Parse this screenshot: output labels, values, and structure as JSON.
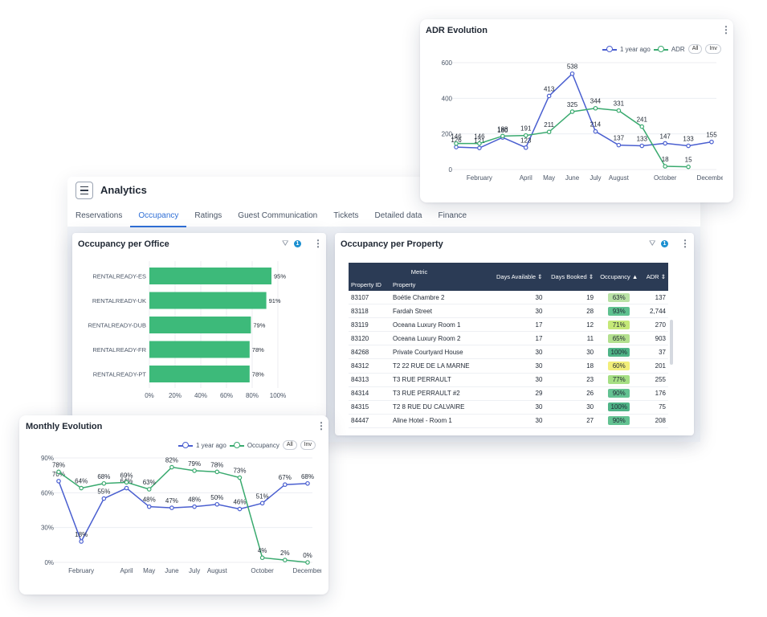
{
  "app": {
    "title": "Analytics"
  },
  "tabs": [
    {
      "label": "Reservations",
      "active": false
    },
    {
      "label": "Occupancy",
      "active": true
    },
    {
      "label": "Ratings",
      "active": false
    },
    {
      "label": "Guest Communication",
      "active": false
    },
    {
      "label": "Tickets",
      "active": false
    },
    {
      "label": "Detailed data",
      "active": false
    },
    {
      "label": "Finance",
      "active": false
    }
  ],
  "office_card": {
    "title": "Occupancy per Office",
    "filter_count": "1",
    "menu_icon": "kebab-icon",
    "chart_data": {
      "type": "bar",
      "orientation": "horizontal",
      "categories": [
        "RENTALREADY-ES",
        "RENTALREADY-UK",
        "RENTALREADY-DUB",
        "RENTALREADY-FR",
        "RENTALREADY-PT"
      ],
      "values": [
        95,
        91,
        79,
        78,
        78
      ],
      "value_labels": [
        "95%",
        "91%",
        "79%",
        "78%",
        "78%"
      ],
      "xticks": [
        "0%",
        "20%",
        "40%",
        "60%",
        "80%",
        "100%"
      ],
      "xlim": [
        0,
        100
      ],
      "color": "#3dba7a"
    }
  },
  "property_card": {
    "title": "Occupancy per Property",
    "filter_count": "1",
    "header": {
      "metric": "Metric",
      "property_id": "Property ID",
      "property": "Property",
      "days_available": "Days Available",
      "days_booked": "Days Booked",
      "occupancy": "Occupancy",
      "adr": "ADR"
    },
    "sort_icons": {
      "days_available": "⇕",
      "days_booked": "⇕",
      "occupancy": "▲",
      "adr": "⇕"
    },
    "rows": [
      {
        "id": "83107",
        "name": "Boétie Chambre 2",
        "avail": "30",
        "booked": "19",
        "occ": "63%",
        "occ_color": "#b9e2a6",
        "adr": "137"
      },
      {
        "id": "83118",
        "name": "Fardah Street",
        "avail": "30",
        "booked": "28",
        "occ": "93%",
        "occ_color": "#5fc190",
        "adr": "2,744"
      },
      {
        "id": "83119",
        "name": "Oceana Luxury Room 1",
        "avail": "17",
        "booked": "12",
        "occ": "71%",
        "occ_color": "#c5e878",
        "adr": "270"
      },
      {
        "id": "83120",
        "name": "Oceana Luxury Room 2",
        "avail": "17",
        "booked": "11",
        "occ": "65%",
        "occ_color": "#b4e08f",
        "adr": "903"
      },
      {
        "id": "84268",
        "name": "Private Courtyard House",
        "avail": "30",
        "booked": "30",
        "occ": "100%",
        "occ_color": "#4fb487",
        "adr": "37"
      },
      {
        "id": "84312",
        "name": "T2 22 RUE DE LA MARNE",
        "avail": "30",
        "booked": "18",
        "occ": "60%",
        "occ_color": "#f2ee7a",
        "adr": "201"
      },
      {
        "id": "84313",
        "name": "T3 RUE PERRAULT",
        "avail": "30",
        "booked": "23",
        "occ": "77%",
        "occ_color": "#a6df84",
        "adr": "255"
      },
      {
        "id": "84314",
        "name": "T3 RUE PERRAULT #2",
        "avail": "29",
        "booked": "26",
        "occ": "90%",
        "occ_color": "#63c292",
        "adr": "176"
      },
      {
        "id": "84315",
        "name": "T2 8 RUE DU CALVAIRE",
        "avail": "30",
        "booked": "30",
        "occ": "100%",
        "occ_color": "#4fb487",
        "adr": "75"
      },
      {
        "id": "84447",
        "name": "Aline Hotel - Room 1",
        "avail": "30",
        "booked": "27",
        "occ": "90%",
        "occ_color": "#63c292",
        "adr": "208"
      }
    ]
  },
  "adr_card": {
    "title": "ADR Evolution",
    "legend": {
      "prev": "1 year ago",
      "cur": "ADR",
      "all": "All",
      "inv": "Inv"
    },
    "chart_data": {
      "type": "line",
      "xticks": [
        "February",
        "April",
        "May",
        "June",
        "July",
        "August",
        "October",
        "December"
      ],
      "x_months": [
        1,
        2,
        3,
        4,
        5,
        6,
        7,
        8,
        9,
        10,
        11,
        12
      ],
      "yticks": [
        "0",
        "200",
        "400",
        "600"
      ],
      "ylim": [
        0,
        600
      ],
      "series": [
        {
          "name": "1 year ago",
          "color": "#4a5fd0",
          "values": [
            126,
            121,
            180,
            123,
            413,
            538,
            214,
            137,
            133,
            147,
            133,
            155
          ],
          "labels": [
            "126",
            "121",
            "180",
            "123",
            "413",
            "538",
            "214",
            "137",
            "133",
            "147",
            "133",
            "155"
          ]
        },
        {
          "name": "ADR",
          "color": "#3aaa6f",
          "values": [
            146,
            146,
            188,
            191,
            211,
            325,
            344,
            331,
            241,
            18,
            15,
            null
          ],
          "labels": [
            "146",
            "146",
            "188",
            "191",
            "211",
            "325",
            "344",
            "331",
            "241",
            "18",
            "15",
            ""
          ]
        }
      ]
    }
  },
  "monthly_card": {
    "title": "Monthly Evolution",
    "legend": {
      "prev": "1 year ago",
      "cur": "Occupancy",
      "all": "All",
      "inv": "Inv"
    },
    "chart_data": {
      "type": "line",
      "xticks": [
        "February",
        "April",
        "May",
        "June",
        "July",
        "August",
        "October",
        "December"
      ],
      "x_months": [
        1,
        2,
        3,
        4,
        5,
        6,
        7,
        8,
        9,
        10,
        11,
        12
      ],
      "yticks": [
        "0%",
        "30%",
        "60%",
        "90%"
      ],
      "ylim": [
        0,
        90
      ],
      "series": [
        {
          "name": "1 year ago",
          "color": "#4a5fd0",
          "values": [
            70,
            18,
            55,
            64,
            48,
            47,
            48,
            50,
            46,
            51,
            67,
            68
          ],
          "labels": [
            "70%",
            "18%",
            "55%",
            "64%",
            "48%",
            "47%",
            "48%",
            "50%",
            "46%",
            "51%",
            "67%",
            "68%"
          ]
        },
        {
          "name": "Occupancy",
          "color": "#3aaa6f",
          "values": [
            78,
            64,
            68,
            69,
            63,
            82,
            79,
            78,
            73,
            4,
            2,
            0
          ],
          "labels": [
            "78%",
            "64%",
            "68%",
            "69%",
            "63%",
            "82%",
            "79%",
            "78%",
            "73%",
            "4%",
            "2%",
            "0%"
          ]
        }
      ]
    }
  }
}
